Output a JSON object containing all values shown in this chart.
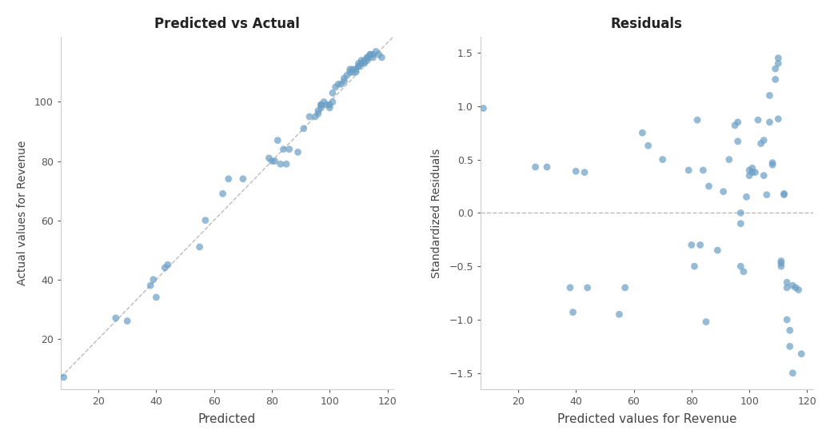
{
  "title_left": "Predicted vs Actual",
  "title_right": "Residuals",
  "xlabel_left": "Predicted",
  "ylabel_left": "Actual values for Revenue",
  "xlabel_right": "Predicted values for Revenue",
  "ylabel_right": "Standardized Residuals",
  "dot_color": "#6A9EC5",
  "dot_alpha": 0.7,
  "dot_size": 40,
  "line_color": "#BBBBBB",
  "background_color": "#FFFFFF",
  "xlim_left": [
    7,
    122
  ],
  "ylim_left": [
    3,
    122
  ],
  "xlim_right": [
    7,
    122
  ],
  "ylim_right": [
    -1.65,
    1.65
  ],
  "xticks_left": [
    20,
    40,
    60,
    80,
    100,
    120
  ],
  "yticks_left": [
    20,
    40,
    60,
    80,
    100
  ],
  "xticks_right": [
    20,
    40,
    60,
    80,
    100,
    120
  ],
  "yticks_right": [
    -1.5,
    -1.0,
    -0.5,
    0.0,
    0.5,
    1.0,
    1.5
  ],
  "predicted": [
    8,
    26,
    30,
    38,
    39,
    40,
    43,
    44,
    55,
    57,
    63,
    65,
    70,
    79,
    80,
    81,
    82,
    83,
    84,
    85,
    86,
    89,
    91,
    93,
    95,
    96,
    96,
    97,
    97,
    97,
    98,
    99,
    100,
    100,
    101,
    101,
    102,
    103,
    104,
    105,
    105,
    106,
    107,
    107,
    108,
    108,
    109,
    109,
    110,
    110,
    110,
    111,
    111,
    111,
    112,
    112,
    113,
    113,
    113,
    114,
    114,
    115,
    115,
    116,
    117,
    118
  ],
  "actual": [
    7,
    27,
    26,
    38,
    40,
    34,
    44,
    45,
    51,
    60,
    69,
    74,
    74,
    81,
    80,
    80,
    87,
    79,
    84,
    79,
    84,
    83,
    91,
    95,
    95,
    96,
    97,
    99,
    99,
    98,
    100,
    99,
    99,
    98,
    100,
    103,
    105,
    106,
    106,
    107,
    108,
    109,
    110,
    111,
    110,
    111,
    110,
    111,
    112,
    112,
    113,
    113,
    113,
    114,
    113,
    114,
    114,
    115,
    115,
    116,
    116,
    115,
    116,
    117,
    116,
    115
  ],
  "res_x": [
    8,
    26,
    30,
    38,
    39,
    40,
    43,
    44,
    55,
    57,
    63,
    65,
    70,
    79,
    80,
    81,
    82,
    83,
    84,
    85,
    86,
    89,
    91,
    93,
    95,
    96,
    96,
    97,
    97,
    97,
    98,
    99,
    100,
    100,
    101,
    101,
    102,
    103,
    104,
    105,
    105,
    106,
    107,
    107,
    108,
    108,
    109,
    109,
    110,
    110,
    110,
    111,
    111,
    111,
    112,
    112,
    113,
    113,
    113,
    114,
    114,
    115,
    115,
    116,
    117,
    118
  ],
  "residuals": [
    0.98,
    0.43,
    0.43,
    -0.7,
    -0.93,
    0.39,
    0.38,
    -0.7,
    -0.95,
    -0.7,
    0.75,
    0.63,
    0.5,
    0.4,
    -0.3,
    -0.5,
    0.87,
    -0.3,
    0.4,
    -1.02,
    0.25,
    -0.35,
    0.2,
    0.5,
    0.82,
    0.85,
    0.67,
    0.0,
    -0.5,
    -0.1,
    -0.55,
    0.15,
    0.4,
    0.35,
    0.38,
    0.42,
    0.38,
    0.87,
    0.65,
    0.68,
    0.35,
    0.17,
    1.1,
    0.85,
    0.45,
    0.47,
    1.25,
    1.35,
    1.4,
    1.45,
    0.88,
    -0.45,
    -0.47,
    -0.5,
    0.18,
    0.17,
    -0.65,
    -0.7,
    -1.0,
    -1.1,
    -1.25,
    -1.5,
    -0.68,
    -0.7,
    -0.72,
    -1.32
  ]
}
